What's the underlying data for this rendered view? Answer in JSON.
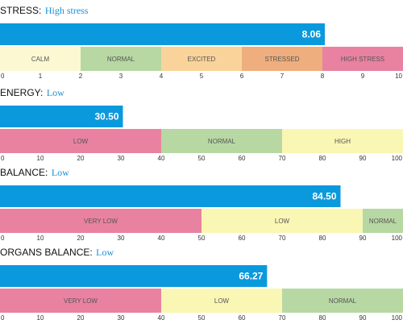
{
  "chart_data": [
    {
      "type": "bar",
      "label": "STRESS:",
      "status": "High stress",
      "value": 8.06,
      "value_label": "8.06",
      "xlim": [
        0,
        10
      ],
      "ticks": [
        0,
        1,
        2,
        3,
        4,
        5,
        6,
        7,
        8,
        9,
        10
      ],
      "zones": [
        {
          "name": "CALM",
          "from": 0,
          "to": 2,
          "color": "#fbf8d2"
        },
        {
          "name": "NORMAL",
          "from": 2,
          "to": 4,
          "color": "#b7d8a3"
        },
        {
          "name": "EXCITED",
          "from": 4,
          "to": 6,
          "color": "#f9d39a"
        },
        {
          "name": "STRESSED",
          "from": 6,
          "to": 8,
          "color": "#eeae7e"
        },
        {
          "name": "HIGH STRESS",
          "from": 8,
          "to": 10,
          "color": "#e882a0"
        }
      ]
    },
    {
      "type": "bar",
      "label": "ENERGY:",
      "status": "Low",
      "value": 30.5,
      "value_label": "30.50",
      "xlim": [
        0,
        100
      ],
      "ticks": [
        0,
        10,
        20,
        30,
        40,
        50,
        60,
        70,
        80,
        90,
        100
      ],
      "zones": [
        {
          "name": "LOW",
          "from": 0,
          "to": 40,
          "color": "#e882a0"
        },
        {
          "name": "NORMAL",
          "from": 40,
          "to": 70,
          "color": "#b7d8a3"
        },
        {
          "name": "HIGH",
          "from": 70,
          "to": 100,
          "color": "#faf6b4"
        }
      ]
    },
    {
      "type": "bar",
      "label": "BALANCE:",
      "status": "Low",
      "value": 84.5,
      "value_label": "84.50",
      "xlim": [
        0,
        100
      ],
      "ticks": [
        0,
        10,
        20,
        30,
        40,
        50,
        60,
        70,
        80,
        90,
        100
      ],
      "zones": [
        {
          "name": "VERY LOW",
          "from": 0,
          "to": 50,
          "color": "#e882a0"
        },
        {
          "name": "LOW",
          "from": 50,
          "to": 90,
          "color": "#faf6b4"
        },
        {
          "name": "NORMAL",
          "from": 90,
          "to": 100,
          "color": "#b7d8a3"
        }
      ]
    },
    {
      "type": "bar",
      "label": "ORGANS BALANCE:",
      "status": "Low",
      "value": 66.27,
      "value_label": "66.27",
      "xlim": [
        0,
        100
      ],
      "ticks": [
        0,
        10,
        20,
        30,
        40,
        50,
        60,
        70,
        80,
        90,
        100
      ],
      "zones": [
        {
          "name": "VERY LOW",
          "from": 0,
          "to": 40,
          "color": "#e882a0"
        },
        {
          "name": "LOW",
          "from": 40,
          "to": 70,
          "color": "#faf6b4"
        },
        {
          "name": "NORMAL",
          "from": 70,
          "to": 100,
          "color": "#b7d8a3"
        }
      ]
    }
  ],
  "colors": {
    "value_bar": "#0b99dd",
    "value_text": "#ffffff",
    "status_text": "#1a8fd6",
    "zone_text": "#555555",
    "tick_text": "#333333"
  }
}
